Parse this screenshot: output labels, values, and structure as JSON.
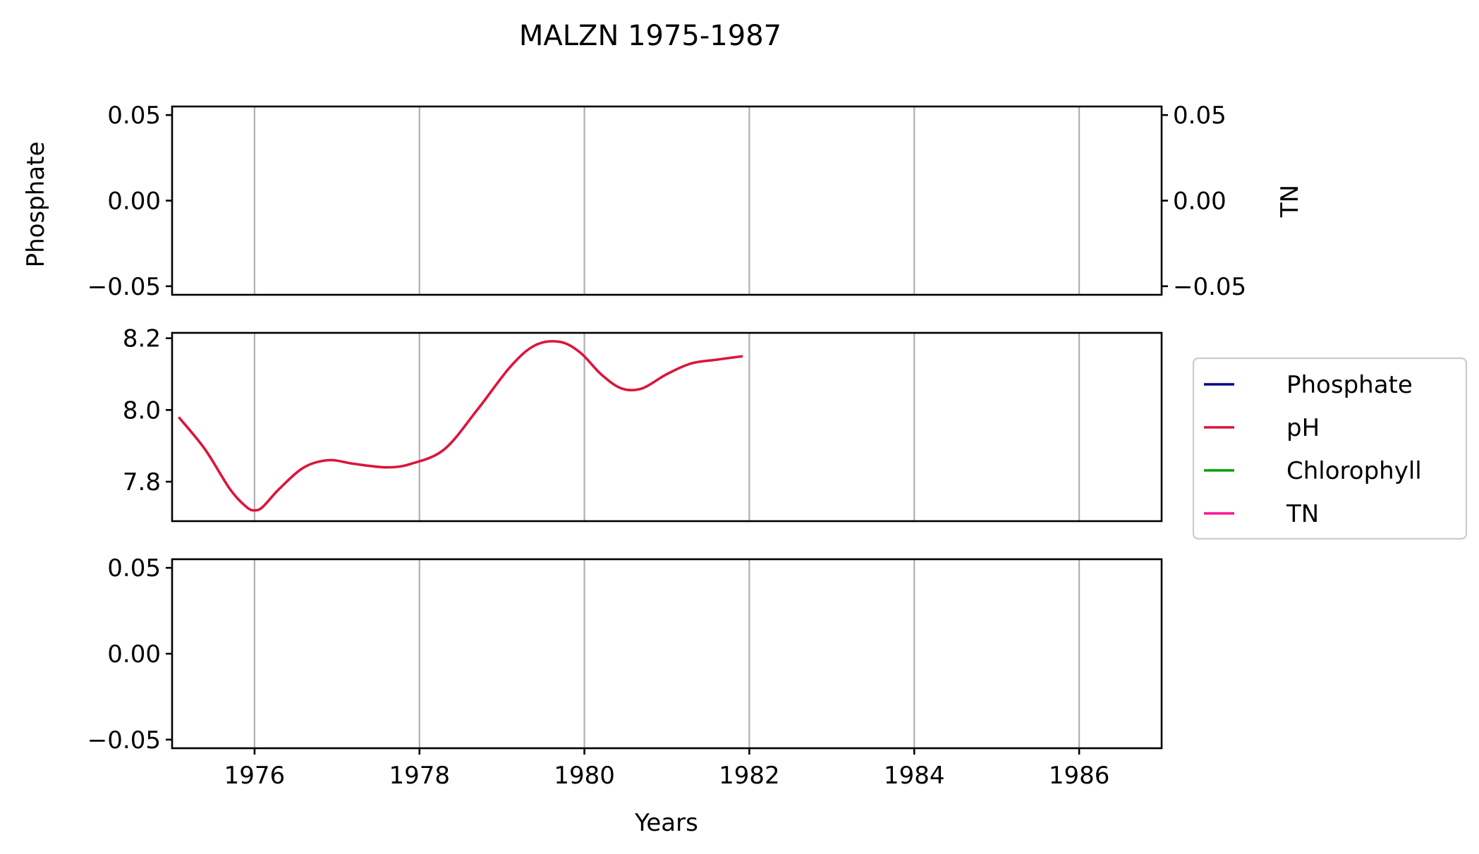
{
  "chart_data": {
    "type": "line",
    "title": "MALZN 1975-1987",
    "xlabel": "Years",
    "xlim": [
      1975.0,
      1987.0
    ],
    "x_ticks": [
      "1976",
      "1978",
      "1980",
      "1982",
      "1984",
      "1986"
    ],
    "grid": "x",
    "legend_placement": "right",
    "legend": [
      {
        "name": "Phosphate",
        "color": "#00008b"
      },
      {
        "name": "pH",
        "color": "#dc143c"
      },
      {
        "name": "Chlorophyll",
        "color": "#00a000"
      },
      {
        "name": "TN",
        "color": "#ff1493"
      }
    ],
    "panels": [
      {
        "ylabel": "Phosphate",
        "right_ylabel": "TN",
        "ylim": [
          -0.055,
          0.055
        ],
        "y_ticks": [
          "0.05",
          "0.00",
          "−0.05"
        ],
        "right_ticks": [
          "0.05",
          "0.00",
          "−0.05"
        ],
        "series": []
      },
      {
        "ylabel": "",
        "ylim": [
          7.69,
          8.215
        ],
        "y_ticks": [
          "8.2",
          "8.0",
          "7.8"
        ],
        "series": [
          {
            "name": "pH",
            "color": "#dc143c",
            "x": [
              1975.08,
              1975.4,
              1975.7,
              1975.9,
              1976.0,
              1976.1,
              1976.3,
              1976.6,
              1976.9,
              1977.2,
              1977.6,
              1977.9,
              1978.3,
              1978.7,
              1979.1,
              1979.4,
              1979.7,
              1979.95,
              1980.2,
              1980.45,
              1980.7,
              1981.0,
              1981.3,
              1981.6,
              1981.92
            ],
            "y": [
              7.98,
              7.89,
              7.78,
              7.73,
              7.72,
              7.73,
              7.78,
              7.84,
              7.86,
              7.85,
              7.84,
              7.85,
              7.89,
              8.0,
              8.12,
              8.18,
              8.19,
              8.16,
              8.1,
              8.06,
              8.06,
              8.1,
              8.13,
              8.14,
              8.15
            ]
          }
        ]
      },
      {
        "ylabel": "",
        "ylim": [
          -0.055,
          0.055
        ],
        "y_ticks": [
          "0.05",
          "0.00",
          "−0.05"
        ],
        "series": []
      }
    ]
  }
}
